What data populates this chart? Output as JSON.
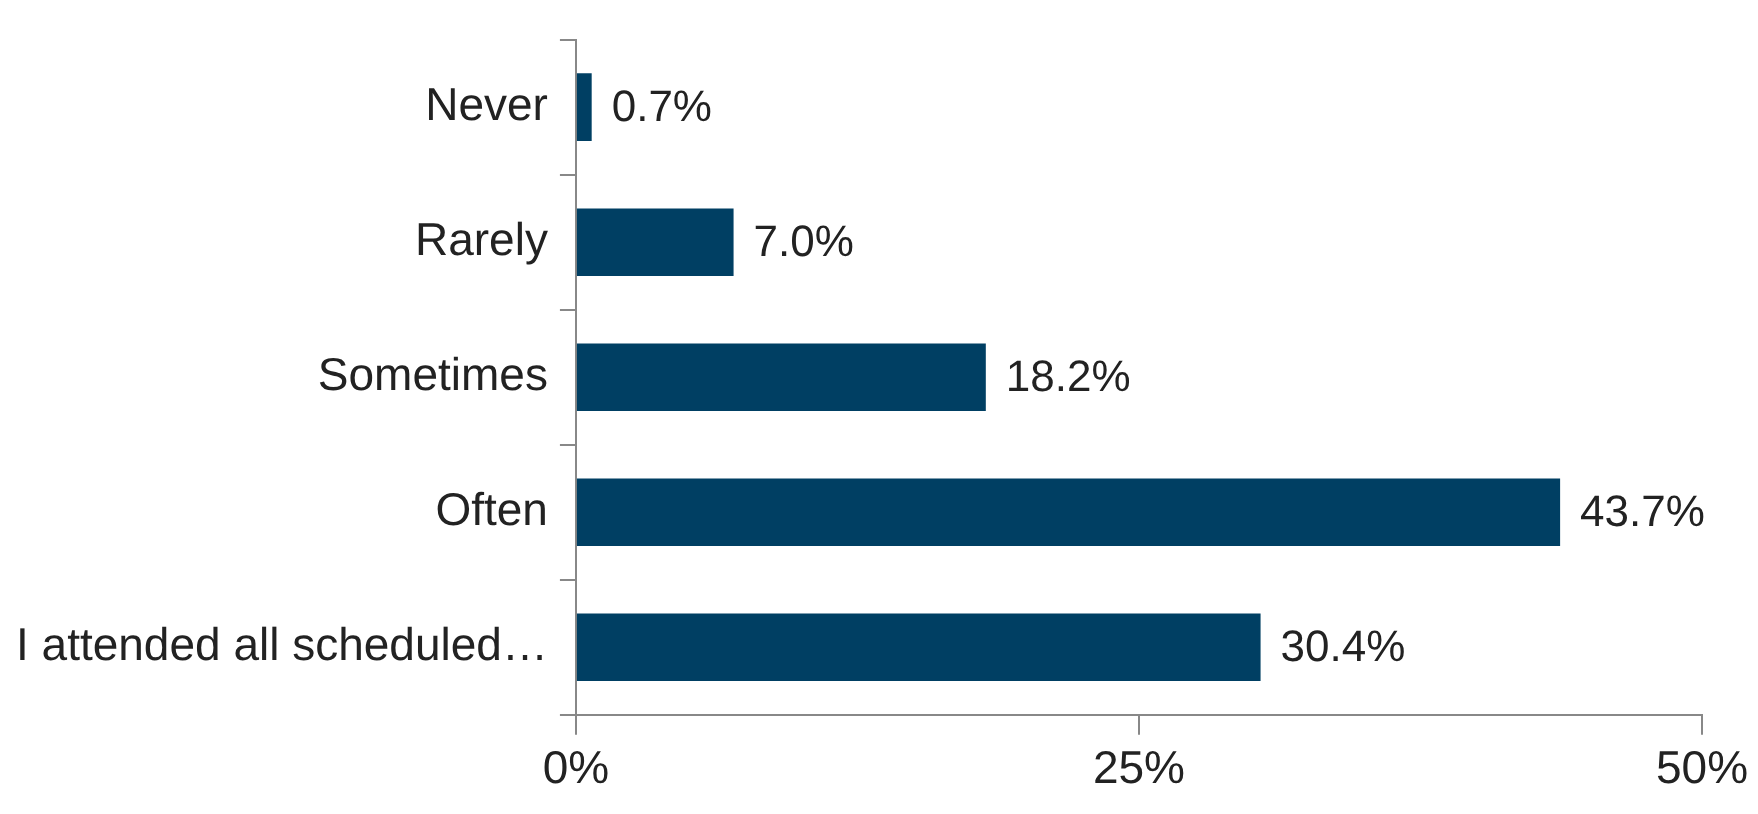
{
  "chart_data": {
    "type": "bar",
    "orientation": "horizontal",
    "categories": [
      "Never",
      "Rarely",
      "Sometimes",
      "Often",
      "I attended all scheduled…"
    ],
    "values": [
      0.7,
      7.0,
      18.2,
      43.7,
      30.4
    ],
    "value_labels": [
      "0.7%",
      "7.0%",
      "18.2%",
      "43.7%",
      "30.4%"
    ],
    "color": "#003f63",
    "xlim": [
      0,
      50
    ],
    "xticks": [
      {
        "value": 0,
        "label": "0%"
      },
      {
        "value": 25,
        "label": "25%"
      },
      {
        "value": 50,
        "label": "50%"
      }
    ],
    "grid": false,
    "legend": false
  }
}
